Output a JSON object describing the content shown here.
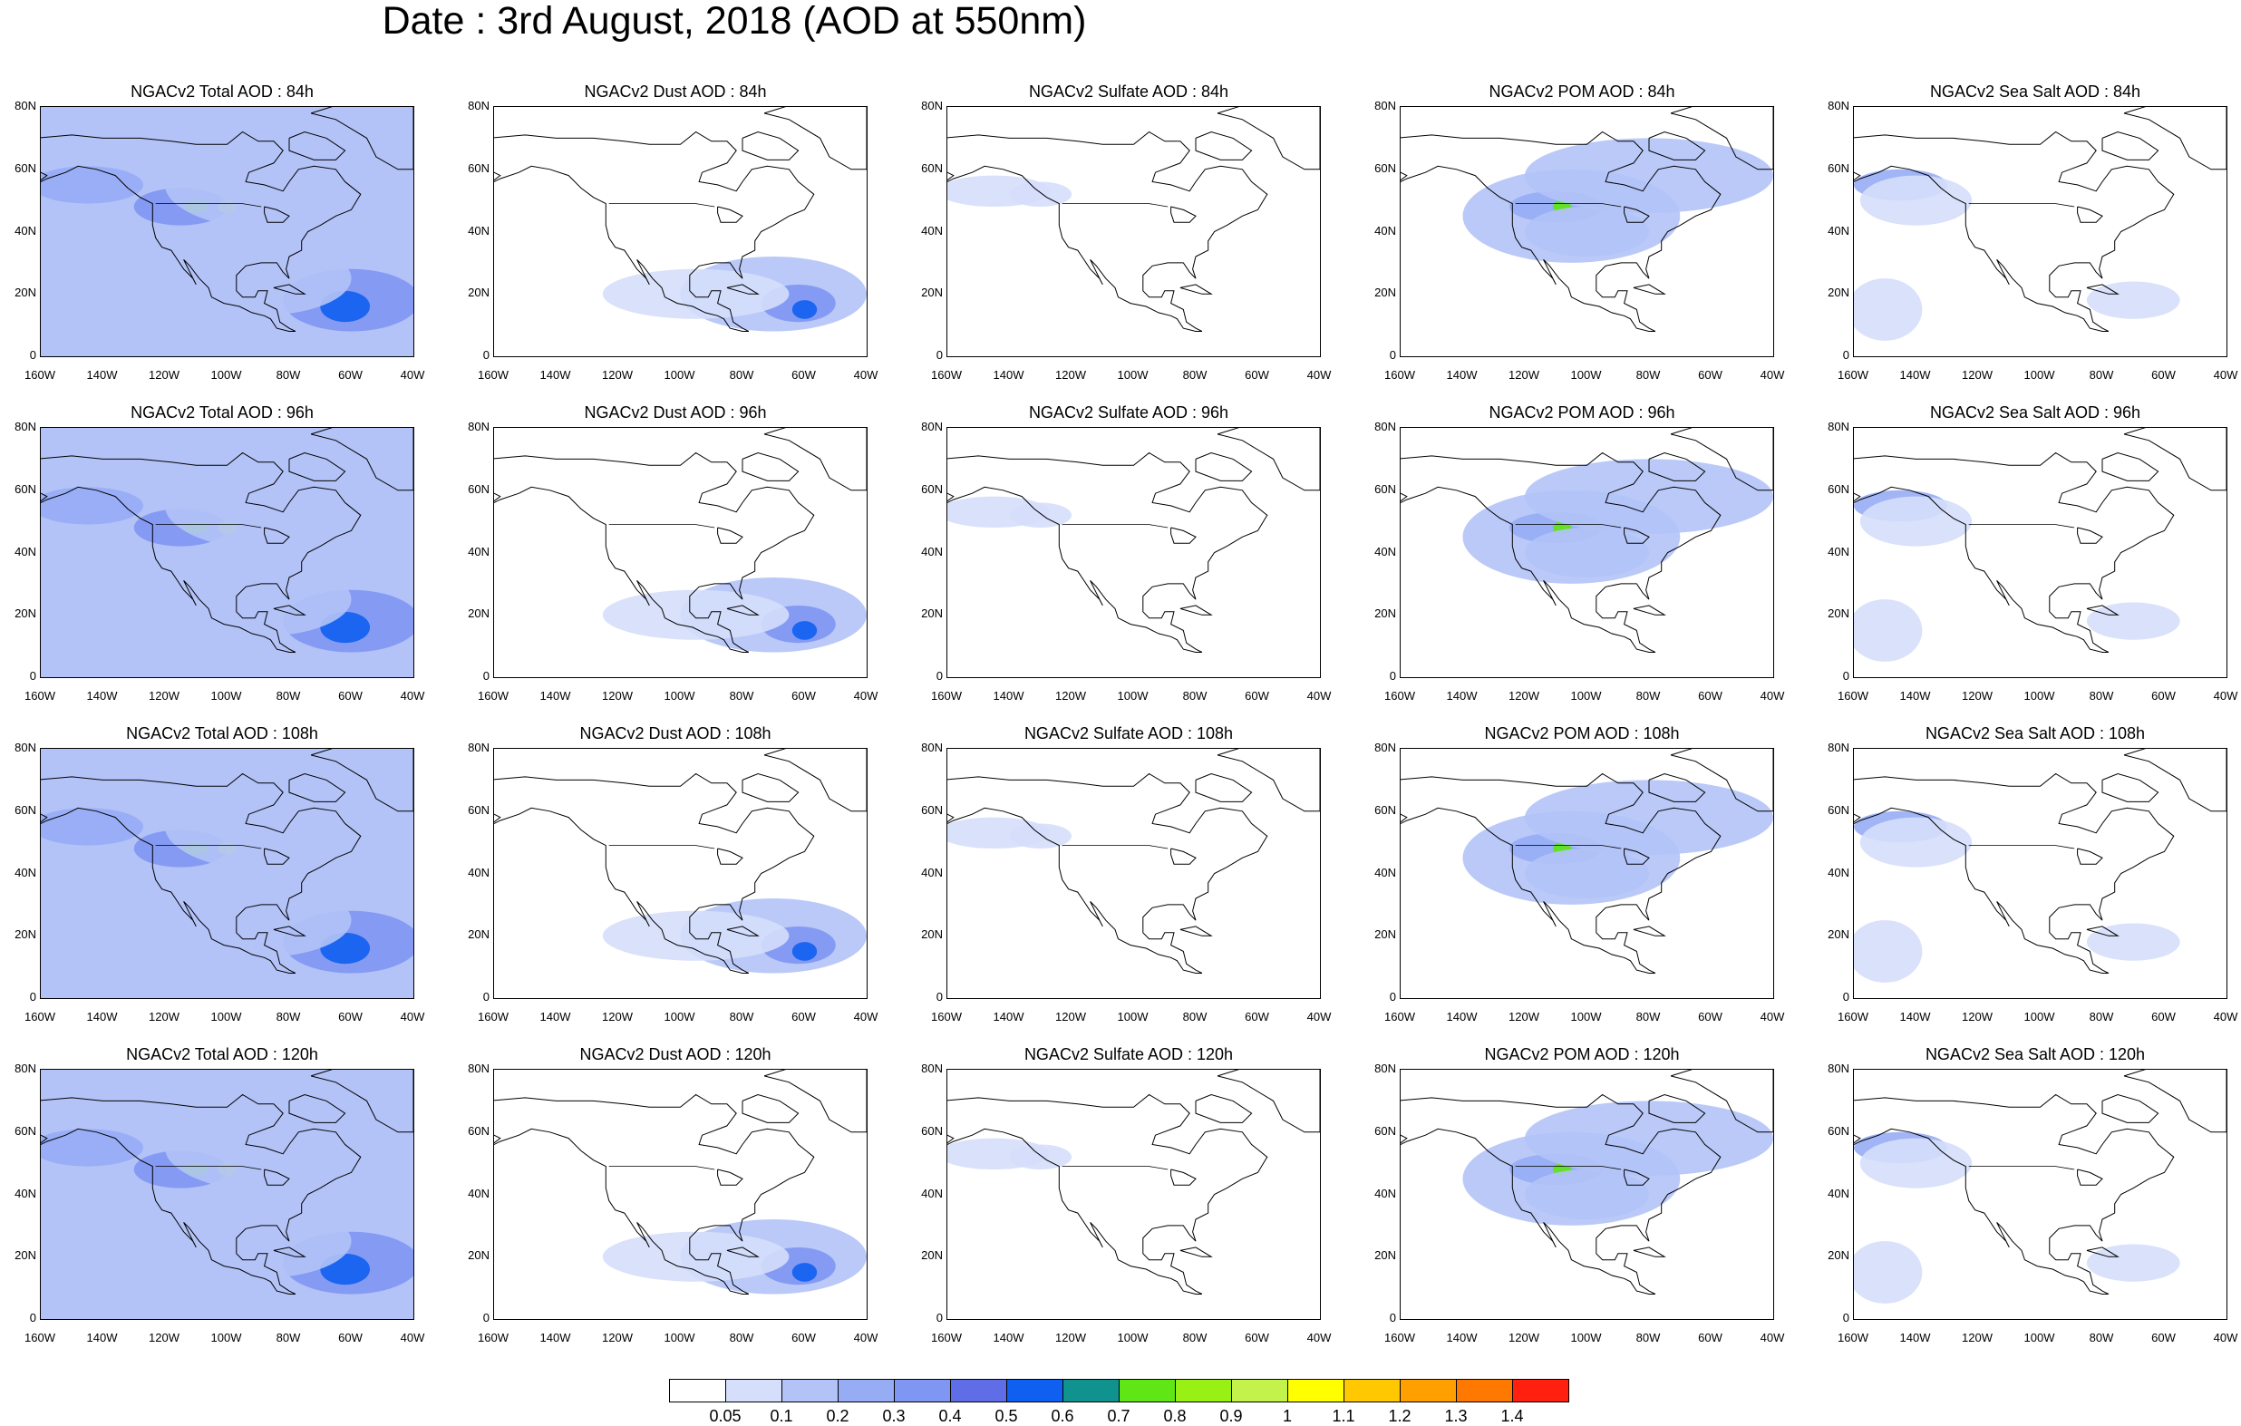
{
  "title": "Date : 3rd August, 2018 (AOD at 550nm)",
  "lat_labels": [
    "80N",
    "60N",
    "40N",
    "20N",
    "0"
  ],
  "lon_labels": [
    "160W",
    "140W",
    "120W",
    "100W",
    "80W",
    "60W",
    "40W"
  ],
  "species": [
    "total",
    "dust",
    "sulfate",
    "pom",
    "seasalt"
  ],
  "panels": [
    {
      "title": "NGACv2 Total AOD : 84h",
      "species": "total",
      "lead": "84h"
    },
    {
      "title": "NGACv2 Dust AOD : 84h",
      "species": "dust",
      "lead": "84h"
    },
    {
      "title": "NGACv2 Sulfate AOD : 84h",
      "species": "sulfate",
      "lead": "84h"
    },
    {
      "title": "NGACv2 POM AOD : 84h",
      "species": "pom",
      "lead": "84h"
    },
    {
      "title": "NGACv2 Sea Salt AOD : 84h",
      "species": "seasalt",
      "lead": "84h"
    },
    {
      "title": "NGACv2 Total AOD : 96h",
      "species": "total",
      "lead": "96h"
    },
    {
      "title": "NGACv2 Dust AOD : 96h",
      "species": "dust",
      "lead": "96h"
    },
    {
      "title": "NGACv2 Sulfate AOD : 96h",
      "species": "sulfate",
      "lead": "96h"
    },
    {
      "title": "NGACv2 POM AOD : 96h",
      "species": "pom",
      "lead": "96h"
    },
    {
      "title": "NGACv2 Sea Salt AOD : 96h",
      "species": "seasalt",
      "lead": "96h"
    },
    {
      "title": "NGACv2 Total AOD : 108h",
      "species": "total",
      "lead": "108h"
    },
    {
      "title": "NGACv2 Dust AOD : 108h",
      "species": "dust",
      "lead": "108h"
    },
    {
      "title": "NGACv2 Sulfate AOD : 108h",
      "species": "sulfate",
      "lead": "108h"
    },
    {
      "title": "NGACv2 POM AOD : 108h",
      "species": "pom",
      "lead": "108h"
    },
    {
      "title": "NGACv2 Sea Salt AOD : 108h",
      "species": "seasalt",
      "lead": "108h"
    },
    {
      "title": "NGACv2 Total AOD : 120h",
      "species": "total",
      "lead": "120h"
    },
    {
      "title": "NGACv2 Dust AOD : 120h",
      "species": "dust",
      "lead": "120h"
    },
    {
      "title": "NGACv2 Sulfate AOD : 120h",
      "species": "sulfate",
      "lead": "120h"
    },
    {
      "title": "NGACv2 POM AOD : 120h",
      "species": "pom",
      "lead": "120h"
    },
    {
      "title": "NGACv2 Sea Salt  AOD : 120h",
      "species": "seasalt",
      "lead": "120h"
    }
  ],
  "colorbar": {
    "labels": [
      "0.05",
      "0.1",
      "0.2",
      "0.3",
      "0.4",
      "0.5",
      "0.6",
      "0.7",
      "0.8",
      "0.9",
      "1",
      "1.1",
      "1.2",
      "1.3",
      "1.4"
    ],
    "colors": [
      "#ffffff",
      "#d5defb",
      "#b3c3f7",
      "#96acf5",
      "#7f96f2",
      "#5f6ee6",
      "#0f5ff0",
      "#10938e",
      "#5fe614",
      "#98f014",
      "#c3f34a",
      "#ffff00",
      "#ffc800",
      "#ffa000",
      "#ff7800",
      "#ff2010"
    ]
  }
}
